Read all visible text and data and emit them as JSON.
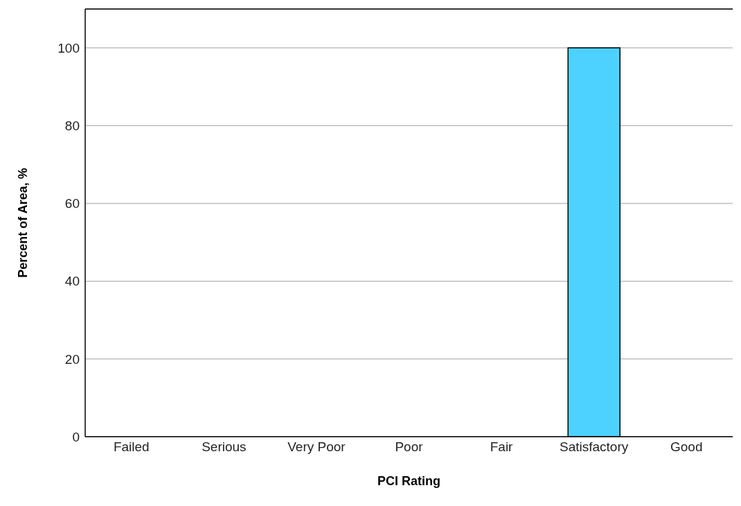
{
  "chart_data": {
    "type": "bar",
    "xlabel": "PCI Rating",
    "ylabel": "Percent of Area, %",
    "categories": [
      "Failed",
      "Serious",
      "Very Poor",
      "Poor",
      "Fair",
      "Satisfactory",
      "Good"
    ],
    "values": [
      0,
      0,
      0,
      0,
      0,
      100,
      0
    ],
    "color": "#4dd2ff",
    "ylim": [
      0,
      110
    ],
    "yticks": [
      0,
      20,
      40,
      60,
      80,
      100
    ],
    "grid": "y"
  }
}
